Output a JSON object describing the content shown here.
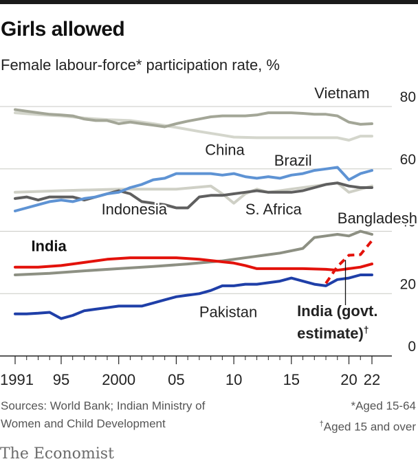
{
  "header": {
    "title": "Girls allowed",
    "subtitle": "Female labour-force* participation rate, %"
  },
  "footer": {
    "sources_line1": "Sources: World Bank; Indian Ministry of",
    "sources_line2": "Women and Child Development",
    "note1": "*Aged 15-64",
    "note2_mark": "†",
    "note2": "Aged 15 and over",
    "brand": "The Economist"
  },
  "colors": {
    "vietnam": "#a3a697",
    "china": "#d4d6cc",
    "brazil": "#5e93d4",
    "indonesia": "#cfd0c6",
    "south_africa": "#5f5f5f",
    "bangladesh": "#8d9083",
    "india": "#e3120b",
    "india_govt": "#e3120b",
    "pakistan": "#1f3fa8",
    "grid": "#c9cac4",
    "axis": "#222222"
  },
  "chart_data": {
    "type": "line",
    "title": "Girls allowed",
    "subtitle": "Female labour-force* participation rate, %",
    "ylim": [
      0,
      80
    ],
    "xlim": [
      1991,
      2022
    ],
    "grid": true,
    "y_axis_side": "right",
    "x_ticks": [
      {
        "value": 1991,
        "label": "1991"
      },
      {
        "value": 1995,
        "label": "95"
      },
      {
        "value": 2000,
        "label": "2000"
      },
      {
        "value": 2005,
        "label": "05"
      },
      {
        "value": 2010,
        "label": "10"
      },
      {
        "value": 2015,
        "label": "15"
      },
      {
        "value": 2020,
        "label": "20"
      },
      {
        "value": 2022,
        "label": "22"
      }
    ],
    "y_ticks": [
      0,
      20,
      40,
      60,
      80
    ],
    "series": [
      {
        "name": "Vietnam",
        "key": "vietnam",
        "x": [
          1991,
          1992,
          1993,
          1994,
          1995,
          1996,
          1997,
          1998,
          1999,
          2000,
          2001,
          2002,
          2003,
          2004,
          2005,
          2006,
          2007,
          2008,
          2009,
          2010,
          2011,
          2012,
          2013,
          2014,
          2015,
          2016,
          2017,
          2018,
          2019,
          2020,
          2021,
          2022
        ],
        "y": [
          79,
          78.5,
          78,
          77.5,
          77.3,
          77,
          76,
          75.5,
          75.5,
          74.5,
          75,
          74.5,
          74,
          73.5,
          74.5,
          75.3,
          76,
          76.7,
          77,
          77,
          77,
          77.3,
          78,
          78,
          78,
          77.8,
          77.5,
          77.5,
          77,
          75,
          74.3,
          74.5
        ]
      },
      {
        "name": "China",
        "key": "china",
        "x": [
          1991,
          1993,
          1995,
          1997,
          1999,
          2001,
          2003,
          2005,
          2007,
          2009,
          2010,
          2012,
          2014,
          2016,
          2018,
          2019,
          2020,
          2021,
          2022
        ],
        "y": [
          78,
          77.4,
          77,
          76.3,
          75.8,
          75.5,
          74.5,
          73.3,
          72,
          70.8,
          70.2,
          70,
          70,
          70,
          70,
          70,
          69.2,
          70.5,
          70.5
        ]
      },
      {
        "name": "Brazil",
        "key": "brazil",
        "x": [
          1991,
          1992,
          1993,
          1994,
          1995,
          1996,
          1997,
          1998,
          1999,
          2000,
          2001,
          2002,
          2003,
          2004,
          2005,
          2006,
          2007,
          2008,
          2009,
          2010,
          2011,
          2012,
          2013,
          2014,
          2015,
          2016,
          2017,
          2018,
          2019,
          2020,
          2021,
          2022
        ],
        "y": [
          46.5,
          47.5,
          48.5,
          49.5,
          50,
          49.5,
          50.5,
          51,
          52,
          52.5,
          54,
          55,
          56.5,
          57,
          58.5,
          58.5,
          58.5,
          58.5,
          58,
          58.5,
          57.5,
          57,
          57.5,
          57,
          58,
          58.5,
          59.5,
          60,
          60.5,
          56.5,
          58.5,
          59.5
        ]
      },
      {
        "name": "Indonesia",
        "key": "indonesia",
        "x": [
          1991,
          1995,
          2000,
          2005,
          2008,
          2009,
          2010,
          2011,
          2012,
          2013,
          2015,
          2017,
          2019,
          2020,
          2021,
          2022
        ],
        "y": [
          52.5,
          53,
          53.5,
          53.5,
          54.5,
          52,
          49,
          52,
          53.5,
          52.5,
          53.5,
          54.5,
          55.5,
          52.5,
          53.5,
          54.5
        ]
      },
      {
        "name": "S. Africa",
        "key": "south_africa",
        "x": [
          1991,
          1992,
          1993,
          1994,
          1995,
          1996,
          1997,
          1998,
          1999,
          2000,
          2001,
          2002,
          2003,
          2004,
          2005,
          2006,
          2007,
          2008,
          2009,
          2010,
          2011,
          2012,
          2013,
          2014,
          2015,
          2016,
          2017,
          2018,
          2019,
          2020,
          2021,
          2022
        ],
        "y": [
          50.5,
          51,
          50,
          51,
          51,
          51,
          50,
          51,
          52,
          53,
          52,
          49.5,
          49,
          48.5,
          47.5,
          47.5,
          51,
          51.5,
          51.5,
          52,
          52.5,
          53,
          52.5,
          52.5,
          52.5,
          53,
          54,
          55,
          55.5,
          54.5,
          54,
          54
        ]
      },
      {
        "name": "Bangladesh",
        "key": "bangladesh",
        "x": [
          1991,
          1994,
          1997,
          2000,
          2003,
          2006,
          2009,
          2010,
          2012,
          2014,
          2016,
          2017,
          2018,
          2019,
          2020,
          2021,
          2022
        ],
        "y": [
          26,
          26.5,
          27.3,
          28,
          28.7,
          29.5,
          30.5,
          31,
          32,
          33,
          34.5,
          38,
          38.5,
          39,
          38.5,
          40,
          39
        ]
      },
      {
        "name": "India",
        "key": "india",
        "x": [
          1991,
          1993,
          1995,
          1997,
          1999,
          2001,
          2003,
          2005,
          2007,
          2009,
          2010,
          2011,
          2012,
          2014,
          2016,
          2018,
          2019,
          2020,
          2021,
          2022
        ],
        "y": [
          28.5,
          28.5,
          29,
          30,
          31,
          31.5,
          31.5,
          31.5,
          31,
          30.2,
          29.8,
          29,
          28,
          28,
          28,
          27.8,
          27.5,
          28,
          28.5,
          29.5
        ]
      },
      {
        "name": "India (govt. estimate)",
        "key": "india_govt",
        "dashed": true,
        "x": [
          2018,
          2019,
          2020,
          2021,
          2022
        ],
        "y": [
          23.3,
          28.7,
          32.3,
          32.5,
          37
        ]
      },
      {
        "name": "Pakistan",
        "key": "pakistan",
        "x": [
          1991,
          1992,
          1993,
          1994,
          1995,
          1996,
          1997,
          1998,
          1999,
          2000,
          2001,
          2002,
          2003,
          2004,
          2005,
          2006,
          2007,
          2008,
          2009,
          2010,
          2011,
          2012,
          2013,
          2014,
          2015,
          2016,
          2017,
          2018,
          2019,
          2020,
          2021,
          2022
        ],
        "y": [
          13.5,
          13.5,
          13.7,
          14,
          12,
          13,
          14.5,
          15,
          15.5,
          16,
          16,
          16,
          17,
          18,
          19,
          19.5,
          20,
          21,
          22.5,
          22.5,
          23,
          23,
          23.5,
          24,
          25,
          24,
          23,
          22.5,
          24.5,
          25,
          26,
          26
        ]
      }
    ],
    "labels": [
      {
        "series": "vietnam",
        "text": "Vietnam",
        "x": 2017,
        "y": 82.6
      },
      {
        "series": "china",
        "text": "China",
        "x": 2007.5,
        "y": 64.5
      },
      {
        "series": "brazil",
        "text": "Brazil",
        "x": 2013.5,
        "y": 61
      },
      {
        "series": "indonesia",
        "text": "Indonesia",
        "x": 1998.5,
        "y": 45.4
      },
      {
        "series": "south_africa",
        "text": "S. Africa",
        "x": 2011,
        "y": 45.4
      },
      {
        "series": "bangladesh",
        "text": "Bangladesh",
        "x": 2019,
        "y": 42.5
      },
      {
        "series": "india",
        "text": "India",
        "x": 1992.4,
        "y": 33.6,
        "bold": true
      },
      {
        "series": "pakistan",
        "text": "Pakistan",
        "x": 2007,
        "y": 12.5
      },
      {
        "series": "india_govt",
        "text": "India (govt.",
        "x": 2015.5,
        "y": 12.8,
        "bold": true
      },
      {
        "series": "india_govt",
        "text": "estimate)",
        "mark": "†",
        "x": 2015.5,
        "y": 5.6,
        "bold": true
      }
    ]
  }
}
